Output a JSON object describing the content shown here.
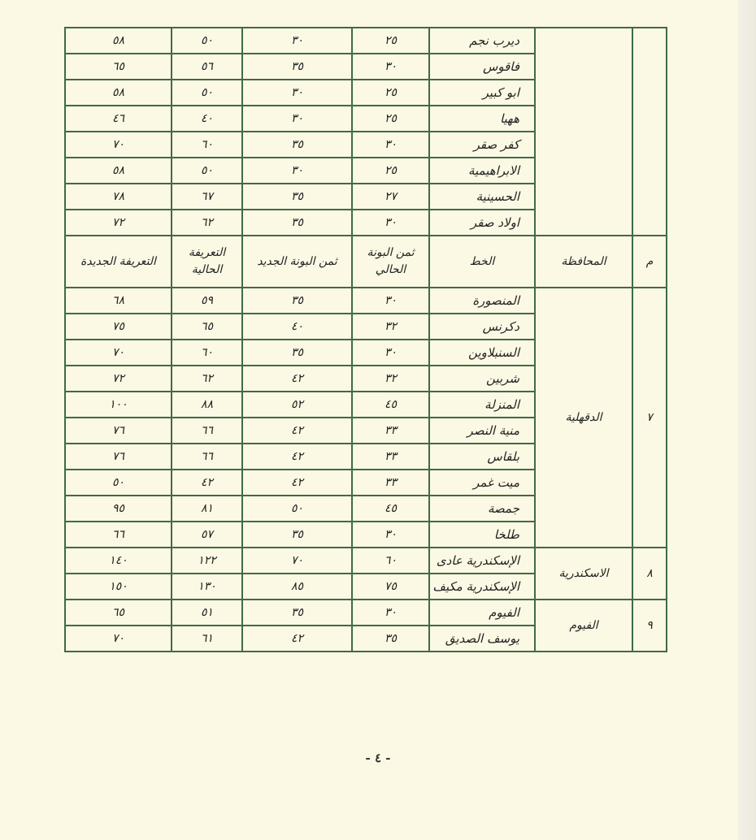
{
  "header": {
    "m": "م",
    "governorate": "المحافظة",
    "line": "الخط",
    "old_coupon": "ثمن البونة الحالي",
    "new_coupon": "ثمن البونة الجديد",
    "old_fare": "التعريفة الحالية",
    "new_fare": "التعريفة الجديدة"
  },
  "top_rows": [
    {
      "line": "ديرب نجم",
      "old_coupon": "٢٥",
      "new_coupon": "٣٠",
      "old_fare": "٥٠",
      "new_fare": "٥٨"
    },
    {
      "line": "فاقوس",
      "old_coupon": "٣٠",
      "new_coupon": "٣٥",
      "old_fare": "٥٦",
      "new_fare": "٦٥"
    },
    {
      "line": "ابو كبير",
      "old_coupon": "٢٥",
      "new_coupon": "٣٠",
      "old_fare": "٥٠",
      "new_fare": "٥٨"
    },
    {
      "line": "ههيا",
      "old_coupon": "٢٥",
      "new_coupon": "٣٠",
      "old_fare": "٤٠",
      "new_fare": "٤٦"
    },
    {
      "line": "كفر صقر",
      "old_coupon": "٣٠",
      "new_coupon": "٣٥",
      "old_fare": "٦٠",
      "new_fare": "٧٠"
    },
    {
      "line": "الابراهيمية",
      "old_coupon": "٢٥",
      "new_coupon": "٣٠",
      "old_fare": "٥٠",
      "new_fare": "٥٨"
    },
    {
      "line": "الحسينية",
      "old_coupon": "٢٧",
      "new_coupon": "٣٥",
      "old_fare": "٦٧",
      "new_fare": "٧٨"
    },
    {
      "line": "اولاد صقر",
      "old_coupon": "٣٠",
      "new_coupon": "٣٥",
      "old_fare": "٦٢",
      "new_fare": "٧٢"
    }
  ],
  "groups": [
    {
      "m": "٧",
      "governorate": "الدقهلية",
      "rows": [
        {
          "line": "المنصورة",
          "old_coupon": "٣٠",
          "new_coupon": "٣٥",
          "old_fare": "٥٩",
          "new_fare": "٦٨"
        },
        {
          "line": "دكرنس",
          "old_coupon": "٣٢",
          "new_coupon": "٤٠",
          "old_fare": "٦٥",
          "new_fare": "٧٥"
        },
        {
          "line": "السنبلاوين",
          "old_coupon": "٣٠",
          "new_coupon": "٣٥",
          "old_fare": "٦٠",
          "new_fare": "٧٠"
        },
        {
          "line": "شربين",
          "old_coupon": "٣٢",
          "new_coupon": "٤٢",
          "old_fare": "٦٢",
          "new_fare": "٧٢"
        },
        {
          "line": "المنزلة",
          "old_coupon": "٤٥",
          "new_coupon": "٥٢",
          "old_fare": "٨٨",
          "new_fare": "١٠٠"
        },
        {
          "line": "منية النصر",
          "old_coupon": "٣٣",
          "new_coupon": "٤٢",
          "old_fare": "٦٦",
          "new_fare": "٧٦"
        },
        {
          "line": "بلقاس",
          "old_coupon": "٣٣",
          "new_coupon": "٤٢",
          "old_fare": "٦٦",
          "new_fare": "٧٦"
        },
        {
          "line": "ميت غمر",
          "old_coupon": "٣٣",
          "new_coupon": "٤٢",
          "old_fare": "٤٢",
          "new_fare": "٥٠"
        },
        {
          "line": "جمصة",
          "old_coupon": "٤٥",
          "new_coupon": "٥٠",
          "old_fare": "٨١",
          "new_fare": "٩٥"
        },
        {
          "line": "طلخا",
          "old_coupon": "٣٠",
          "new_coupon": "٣٥",
          "old_fare": "٥٧",
          "new_fare": "٦٦"
        }
      ]
    },
    {
      "m": "٨",
      "governorate": "الاسكندرية",
      "rows": [
        {
          "line": "الإسكندرية عادى",
          "old_coupon": "٦٠",
          "new_coupon": "٧٠",
          "old_fare": "١٢٢",
          "new_fare": "١٤٠"
        },
        {
          "line": "الإسكندرية مكيف",
          "old_coupon": "٧٥",
          "new_coupon": "٨٥",
          "old_fare": "١٣٠",
          "new_fare": "١٥٠"
        }
      ]
    },
    {
      "m": "٩",
      "governorate": "الفيوم",
      "rows": [
        {
          "line": "الفيوم",
          "old_coupon": "٣٠",
          "new_coupon": "٣٥",
          "old_fare": "٥١",
          "new_fare": "٦٥"
        },
        {
          "line": "يوسف الصديق",
          "old_coupon": "٣٥",
          "new_coupon": "٤٢",
          "old_fare": "٦١",
          "new_fare": "٧٠"
        }
      ]
    }
  ],
  "page_number": "- ٤ -",
  "colors": {
    "border": "#3f6b47",
    "paper": "#fbf8e4"
  }
}
